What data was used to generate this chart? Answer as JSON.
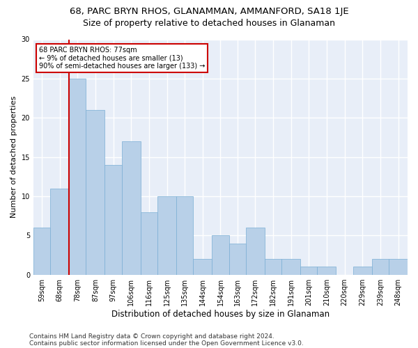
{
  "title": "68, PARC BRYN RHOS, GLANAMMAN, AMMANFORD, SA18 1JE",
  "subtitle": "Size of property relative to detached houses in Glanaman",
  "xlabel": "Distribution of detached houses by size in Glanaman",
  "ylabel": "Number of detached properties",
  "footer_line1": "Contains HM Land Registry data © Crown copyright and database right 2024.",
  "footer_line2": "Contains public sector information licensed under the Open Government Licence v3.0.",
  "bins": [
    "59sqm",
    "68sqm",
    "78sqm",
    "87sqm",
    "97sqm",
    "106sqm",
    "116sqm",
    "125sqm",
    "135sqm",
    "144sqm",
    "154sqm",
    "163sqm",
    "172sqm",
    "182sqm",
    "191sqm",
    "201sqm",
    "210sqm",
    "220sqm",
    "229sqm",
    "239sqm",
    "248sqm"
  ],
  "values": [
    6,
    11,
    25,
    21,
    14,
    17,
    8,
    10,
    10,
    2,
    5,
    4,
    6,
    2,
    2,
    1,
    1,
    0,
    1,
    2,
    2
  ],
  "bar_color": "#b8d0e8",
  "bar_edgecolor": "#7aaed4",
  "bin_edges": [
    59,
    68,
    78,
    87,
    97,
    106,
    116,
    125,
    135,
    144,
    154,
    163,
    172,
    182,
    191,
    201,
    210,
    220,
    229,
    239,
    248,
    258
  ],
  "annotation_text": "68 PARC BRYN RHOS: 77sqm\n← 9% of detached houses are smaller (13)\n90% of semi-detached houses are larger (133) →",
  "annotation_box_color": "#ffffff",
  "annotation_box_edgecolor": "#cc0000",
  "vline_color": "#cc0000",
  "ylim": [
    0,
    30
  ],
  "background_color": "#e8eef8",
  "grid_color": "#ffffff",
  "title_fontsize": 9.5,
  "subtitle_fontsize": 9,
  "ylabel_fontsize": 8,
  "xlabel_fontsize": 8.5,
  "tick_fontsize": 7,
  "footer_fontsize": 6.5
}
